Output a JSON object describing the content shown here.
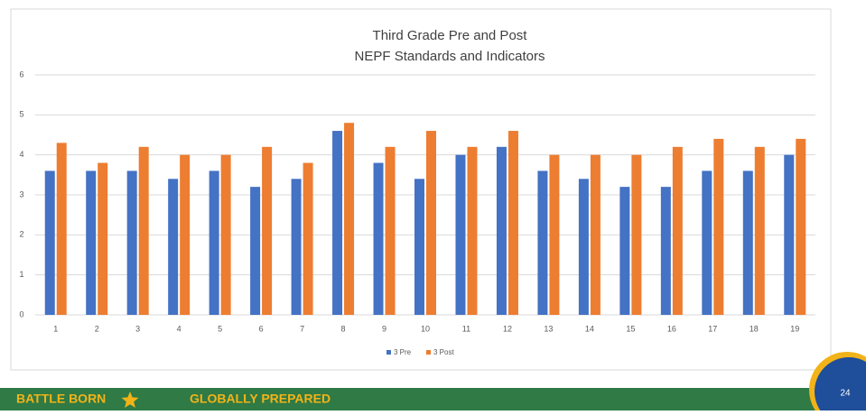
{
  "chart_data": {
    "type": "bar",
    "title": [
      "Third Grade Pre and Post",
      "NEPF Standards and Indicators"
    ],
    "categories": [
      "1",
      "2",
      "3",
      "4",
      "5",
      "6",
      "7",
      "8",
      "9",
      "10",
      "11",
      "12",
      "13",
      "14",
      "15",
      "16",
      "17",
      "18",
      "19"
    ],
    "series": [
      {
        "name": "3 Pre",
        "color": "#4472c4",
        "values": [
          3.6,
          3.6,
          3.6,
          3.4,
          3.6,
          3.2,
          3.4,
          4.6,
          3.8,
          3.4,
          4.0,
          4.2,
          3.6,
          3.4,
          3.2,
          3.2,
          3.6,
          3.6,
          4.0
        ]
      },
      {
        "name": "3 Post",
        "color": "#ed7d31",
        "values": [
          4.3,
          3.8,
          4.2,
          4.0,
          4.0,
          4.2,
          3.8,
          4.8,
          4.2,
          4.6,
          4.2,
          4.6,
          4.0,
          4.0,
          4.0,
          4.2,
          4.4,
          4.2,
          4.4
        ]
      }
    ],
    "ylim": [
      0,
      6
    ],
    "yticks": [
      0,
      1,
      2,
      3,
      4,
      5,
      6
    ],
    "grid": true,
    "legend": "bottom"
  },
  "footer": {
    "left": "BATTLE BORN",
    "right": "GLOBALLY PREPARED",
    "page": "24"
  }
}
